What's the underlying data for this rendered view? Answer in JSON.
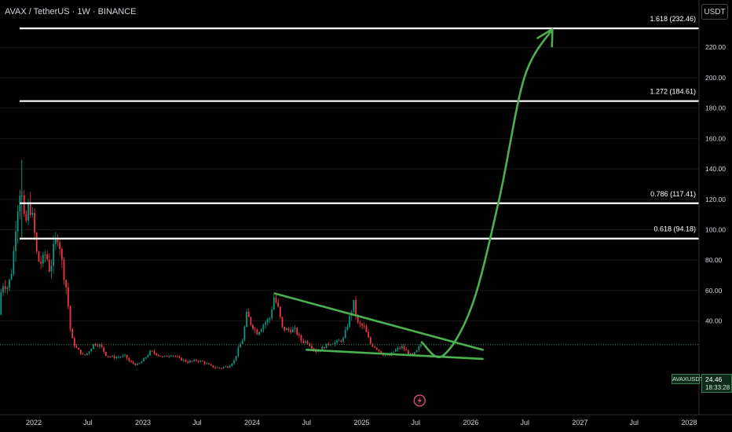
{
  "header": {
    "symbol_title": "AVAX / TetherUS · 1W · BINANCE",
    "currency_label": "USDT"
  },
  "price_axis": {
    "ticks": [
      "220.00",
      "200.00",
      "180.00",
      "160.00",
      "140.00",
      "120.00",
      "100.00",
      "80.00",
      "60.00",
      "40.00"
    ],
    "symbol_tag": "AVAXUSDT",
    "last_price": "24.46",
    "countdown": "18:33:28"
  },
  "time_axis": {
    "labels": [
      "2022",
      "Jul",
      "2023",
      "Jul",
      "2024",
      "Jul",
      "2025",
      "Jul",
      "2026",
      "Jul",
      "2027",
      "Jul",
      "2028"
    ]
  },
  "fib_levels": [
    {
      "label": "1.618 (232.46)",
      "value": 232.46
    },
    {
      "label": "1.272 (184.61)",
      "value": 184.61
    },
    {
      "label": "0.786 (117.41)",
      "value": 117.41
    },
    {
      "label": "0.618 (94.18)",
      "value": 94.18
    }
  ],
  "colors": {
    "background": "#000000",
    "up_candle": "#089981",
    "down_candle": "#f23645",
    "drawing": "#4caf50",
    "fib_line": "#ffffff",
    "grid": "#1a1a1a"
  },
  "chart_data": {
    "type": "candlestick",
    "title": "AVAX / TetherUS · 1W · BINANCE",
    "ylabel": "USDT",
    "ylim": [
      0,
      238
    ],
    "xlim": [
      "2021-09-01",
      "2028-03-01"
    ],
    "price_path": [
      [
        "2021-09-01",
        25
      ],
      [
        "2021-09-20",
        65
      ],
      [
        "2021-10-10",
        62
      ],
      [
        "2021-10-25",
        75
      ],
      [
        "2021-11-08",
        110
      ],
      [
        "2021-11-22",
        130
      ],
      [
        "2021-12-06",
        100
      ],
      [
        "2021-12-20",
        118
      ],
      [
        "2022-01-03",
        105
      ],
      [
        "2022-01-17",
        80
      ],
      [
        "2022-01-31",
        78
      ],
      [
        "2022-02-14",
        85
      ],
      [
        "2022-02-28",
        72
      ],
      [
        "2022-03-14",
        90
      ],
      [
        "2022-03-28",
        97
      ],
      [
        "2022-04-11",
        75
      ],
      [
        "2022-04-25",
        60
      ],
      [
        "2022-05-09",
        30
      ],
      [
        "2022-05-23",
        23
      ],
      [
        "2022-06-06",
        20
      ],
      [
        "2022-06-20",
        17
      ],
      [
        "2022-07-04",
        19
      ],
      [
        "2022-07-25",
        25
      ],
      [
        "2022-08-15",
        24
      ],
      [
        "2022-09-05",
        17
      ],
      [
        "2022-10-03",
        16
      ],
      [
        "2022-11-07",
        17
      ],
      [
        "2022-11-21",
        13
      ],
      [
        "2022-12-19",
        11
      ],
      [
        "2023-01-09",
        15
      ],
      [
        "2023-01-30",
        20
      ],
      [
        "2023-02-20",
        18
      ],
      [
        "2023-03-13",
        16
      ],
      [
        "2023-04-10",
        18
      ],
      [
        "2023-05-08",
        15
      ],
      [
        "2023-06-05",
        13
      ],
      [
        "2023-07-03",
        14
      ],
      [
        "2023-07-24",
        13
      ],
      [
        "2023-08-21",
        10
      ],
      [
        "2023-09-18",
        9
      ],
      [
        "2023-10-16",
        10
      ],
      [
        "2023-11-06",
        14
      ],
      [
        "2023-11-20",
        22
      ],
      [
        "2023-12-04",
        28
      ],
      [
        "2023-12-18",
        45
      ],
      [
        "2024-01-01",
        38
      ],
      [
        "2024-01-22",
        32
      ],
      [
        "2024-02-12",
        38
      ],
      [
        "2024-03-04",
        42
      ],
      [
        "2024-03-18",
        56
      ],
      [
        "2024-04-01",
        48
      ],
      [
        "2024-04-15",
        35
      ],
      [
        "2024-05-06",
        34
      ],
      [
        "2024-05-27",
        34
      ],
      [
        "2024-06-17",
        27
      ],
      [
        "2024-07-08",
        26
      ],
      [
        "2024-08-05",
        20
      ],
      [
        "2024-08-26",
        22
      ],
      [
        "2024-09-16",
        25
      ],
      [
        "2024-10-14",
        26
      ],
      [
        "2024-11-04",
        28
      ],
      [
        "2024-11-25",
        42
      ],
      [
        "2024-12-09",
        52
      ],
      [
        "2024-12-23",
        38
      ],
      [
        "2025-01-13",
        36
      ],
      [
        "2025-02-03",
        25
      ],
      [
        "2025-02-24",
        22
      ],
      [
        "2025-03-17",
        18
      ],
      [
        "2025-04-07",
        17
      ],
      [
        "2025-04-28",
        21
      ],
      [
        "2025-05-19",
        23
      ],
      [
        "2025-06-09",
        19
      ],
      [
        "2025-06-23",
        17
      ],
      [
        "2025-07-07",
        20
      ],
      [
        "2025-07-21",
        24.46
      ]
    ],
    "last_price": 24.46,
    "fib_retracement": [
      {
        "ratio": "1.618",
        "price": 232.46
      },
      {
        "ratio": "1.272",
        "price": 184.61
      },
      {
        "ratio": "0.786",
        "price": 117.41
      },
      {
        "ratio": "0.618",
        "price": 94.18
      }
    ],
    "falling_wedge": {
      "upper": [
        [
          "2024-03-18",
          58
        ],
        [
          "2026-02-10",
          21
        ]
      ],
      "lower": [
        [
          "2024-07-01",
          21
        ],
        [
          "2026-02-10",
          15
        ]
      ]
    },
    "projection_arrow": [
      [
        "2025-07-21",
        26
      ],
      [
        "2025-09-29",
        17
      ],
      [
        "2026-01-05",
        50
      ],
      [
        "2026-04-06",
        120
      ],
      [
        "2026-06-29",
        200
      ],
      [
        "2026-10-01",
        232
      ]
    ]
  }
}
